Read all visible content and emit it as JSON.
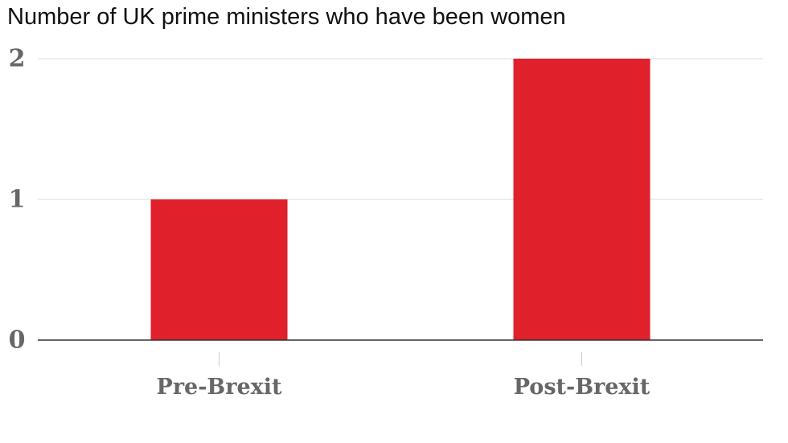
{
  "chart_data": {
    "type": "bar",
    "title": "Number of UK prime ministers who have been women",
    "categories": [
      "Pre-Brexit",
      "Post-Brexit"
    ],
    "values": [
      1,
      2
    ],
    "ylim": [
      0,
      2
    ],
    "yticks": [
      "0",
      "1",
      "2"
    ],
    "xlabel": "",
    "ylabel": "",
    "grid": true,
    "bar_color": "#e0202a"
  }
}
